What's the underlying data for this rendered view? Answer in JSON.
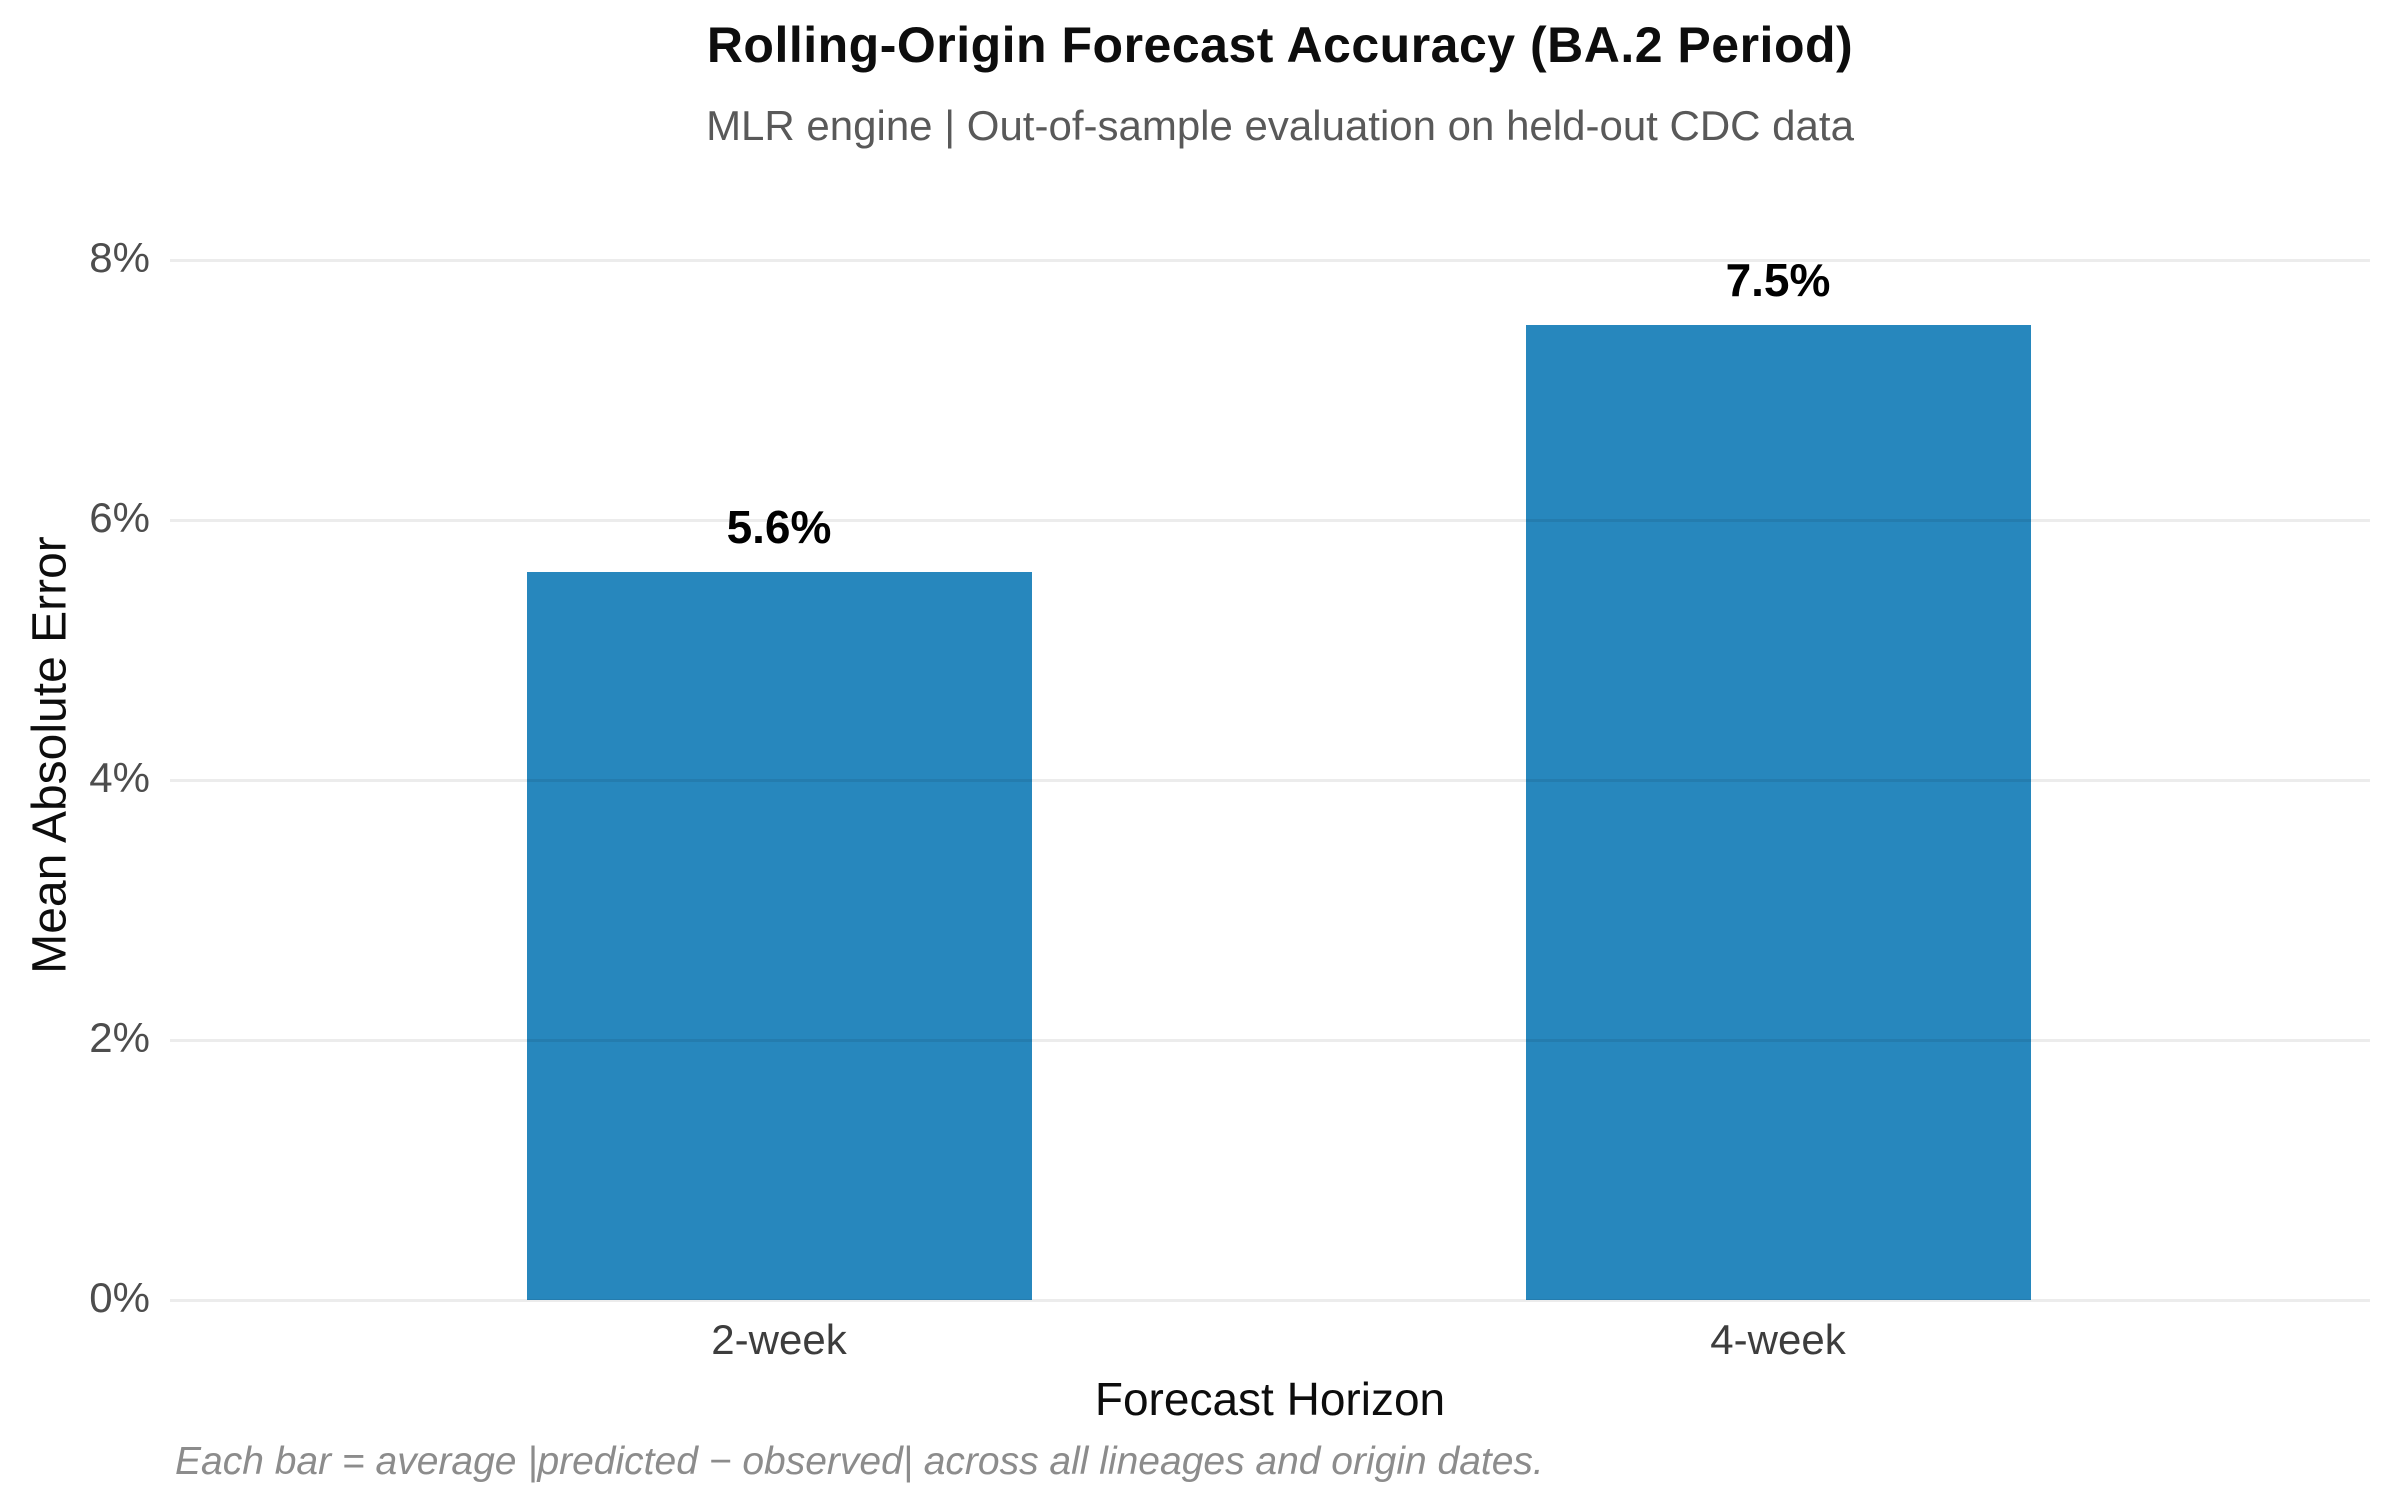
{
  "figure": {
    "title": "Rolling-Origin Forecast Accuracy (BA.2 Period)",
    "subtitle": "MLR engine | Out-of-sample evaluation on held-out CDC data",
    "footnote": "Each bar = average |predicted − observed| across all lineages and origin dates."
  },
  "chart_data": {
    "type": "bar",
    "title": "Rolling-Origin Forecast Accuracy (BA.2 Period)",
    "subtitle": "MLR engine | Out-of-sample evaluation on held-out CDC data",
    "categories": [
      "2-week",
      "4-week"
    ],
    "values": [
      5.6,
      7.5
    ],
    "value_labels": [
      "5.6%",
      "7.5%"
    ],
    "xlabel": "Forecast Horizon",
    "ylabel": "Mean Absolute Error",
    "ylim": [
      0,
      8
    ],
    "yticks": [
      0,
      2,
      4,
      6,
      8
    ],
    "ytick_labels": [
      "0%",
      "2%",
      "4%",
      "6%",
      "8%"
    ],
    "grid": "horizontal-only",
    "legend": "none",
    "bar_color": "#2787bd",
    "annotation": "Each bar = average |predicted − observed| across all lineages and origin dates."
  },
  "colors": {
    "bar": "#2787bd",
    "title": "#0d0d0d",
    "subtitle": "#595959",
    "tick_label": "#4d4d4d",
    "gridline": "#e9e9e9",
    "footnote": "#8c8c8c",
    "background": "#ffffff"
  }
}
